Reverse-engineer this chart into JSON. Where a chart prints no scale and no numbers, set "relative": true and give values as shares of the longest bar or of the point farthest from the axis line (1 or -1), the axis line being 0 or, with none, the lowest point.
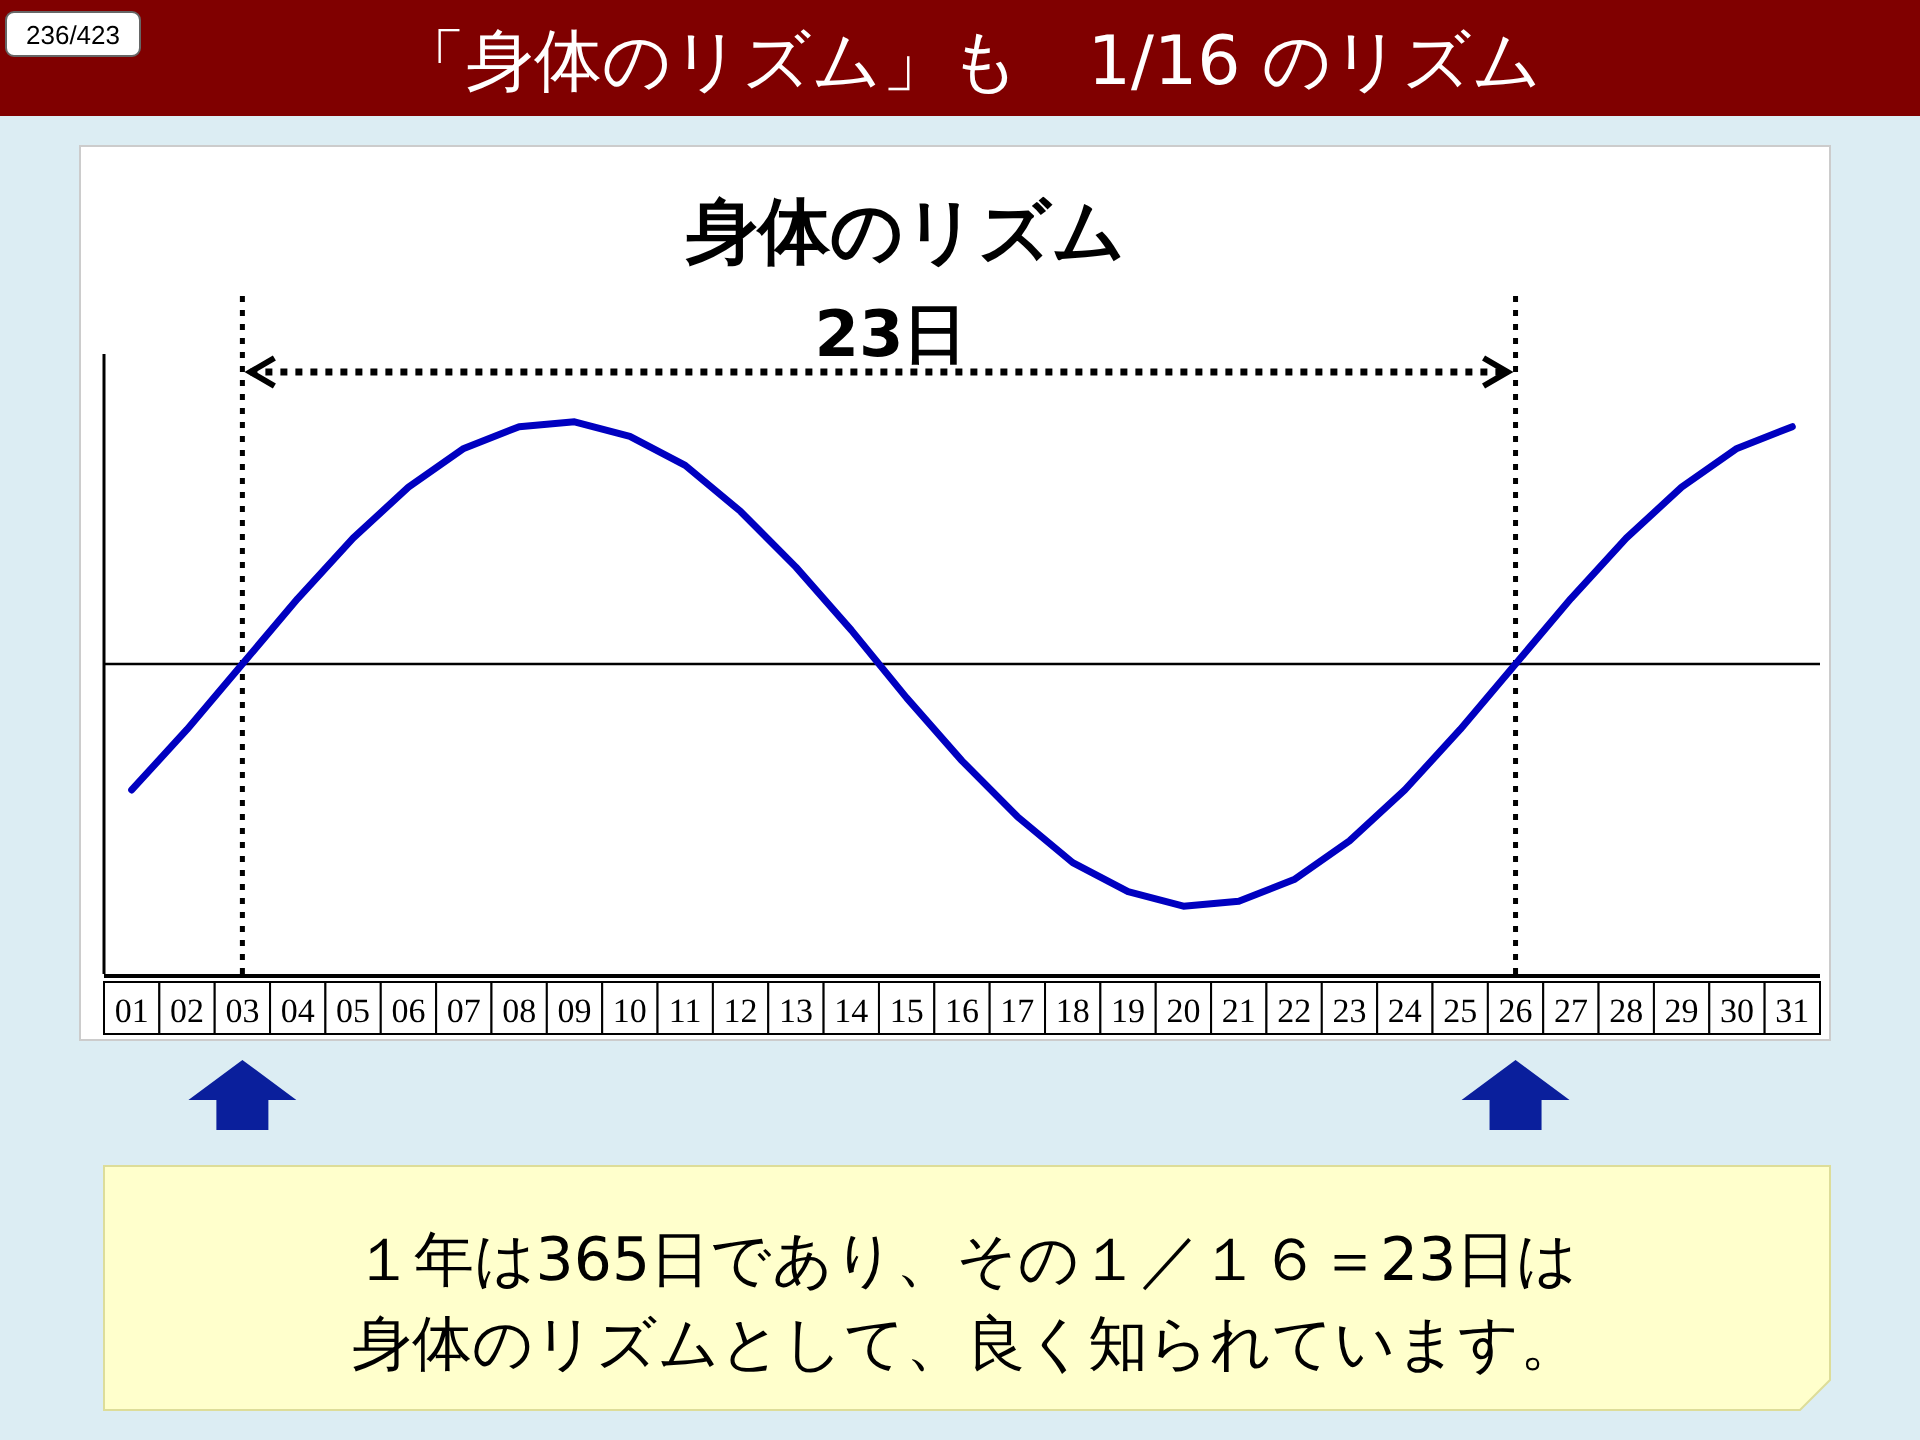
{
  "chart_data": {
    "type": "line",
    "title": "身体のリズム",
    "relative": true,
    "categories": [
      "01",
      "02",
      "03",
      "04",
      "05",
      "06",
      "07",
      "08",
      "09",
      "10",
      "11",
      "12",
      "13",
      "14",
      "15",
      "16",
      "17",
      "18",
      "19",
      "20",
      "21",
      "22",
      "23",
      "24",
      "25",
      "26",
      "27",
      "28",
      "29",
      "30",
      "31"
    ],
    "series": [
      {
        "color": "#0000c0",
        "values": [
          -0.52,
          -0.27,
          0,
          0.27,
          0.52,
          0.73,
          0.89,
          0.98,
          1.0,
          0.94,
          0.82,
          0.63,
          0.4,
          0.14,
          -0.14,
          -0.4,
          -0.63,
          -0.82,
          -0.94,
          -1.0,
          -0.98,
          -0.89,
          -0.73,
          -0.52,
          -0.27,
          0,
          0.27,
          0.52,
          0.73,
          0.89,
          0.98
        ]
      }
    ],
    "ref_lines": [
      {
        "axis": "x",
        "value": "03",
        "line_style": "dotted",
        "color": "#000000"
      },
      {
        "axis": "x",
        "value": "26",
        "line_style": "dotted",
        "color": "#000000"
      }
    ],
    "annotations": [
      "「身体のリズム」も　1/16 のリズム",
      "236/423",
      "23日",
      "１年は365日であり、その１／１６＝23日は",
      "身体のリズムとして、良く知られています。"
    ],
    "marker": "none",
    "line_style": "solid"
  }
}
